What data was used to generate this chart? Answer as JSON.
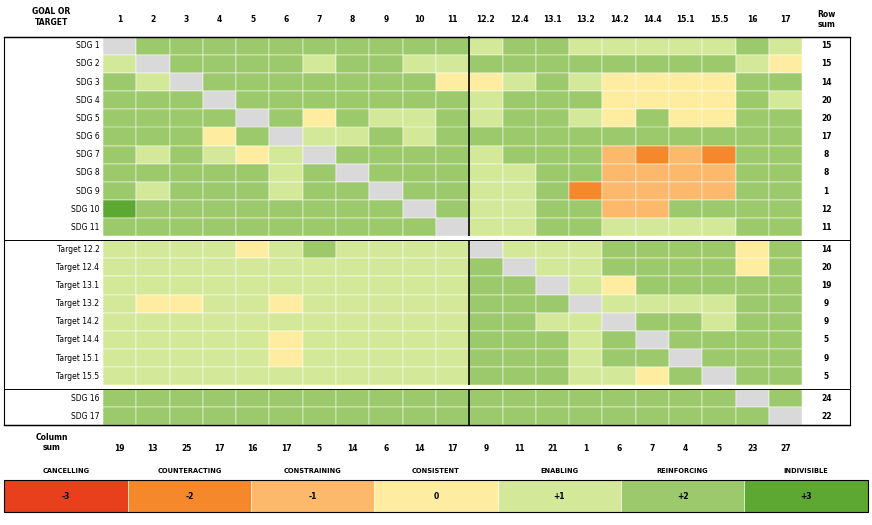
{
  "rows": [
    "SDG 1",
    "SDG 2",
    "SDG 3",
    "SDG 4",
    "SDG 5",
    "SDG 6",
    "SDG 7",
    "SDG 8",
    "SDG 9",
    "SDG 10",
    "SDG 11",
    "Target 12.2",
    "Target 12.4",
    "Target 13.1",
    "Target 13.2",
    "Target 14.2",
    "Target 14.4",
    "Target 15.1",
    "Target 15.5",
    "SDG 16",
    "SDG 17"
  ],
  "cols": [
    "1",
    "2",
    "3",
    "4",
    "5",
    "6",
    "7",
    "8",
    "9",
    "10",
    "11",
    "12.2",
    "12.4",
    "13.1",
    "13.2",
    "14.2",
    "14.4",
    "15.1",
    "15.5",
    "16",
    "17"
  ],
  "row_sums": [
    15,
    15,
    14,
    20,
    20,
    17,
    8,
    8,
    1,
    12,
    11,
    14,
    20,
    19,
    9,
    9,
    5,
    9,
    5,
    24,
    22
  ],
  "col_sums": [
    19,
    13,
    25,
    17,
    16,
    17,
    5,
    14,
    6,
    14,
    17,
    9,
    11,
    21,
    1,
    6,
    7,
    4,
    5,
    23,
    27
  ],
  "matrix": [
    [
      -9,
      2,
      2,
      2,
      2,
      2,
      2,
      2,
      2,
      2,
      2,
      1,
      2,
      2,
      1,
      1,
      1,
      1,
      1,
      2,
      1
    ],
    [
      1,
      -9,
      2,
      2,
      2,
      2,
      1,
      2,
      2,
      1,
      1,
      2,
      2,
      2,
      2,
      2,
      2,
      2,
      2,
      1,
      0
    ],
    [
      2,
      1,
      -9,
      2,
      2,
      2,
      2,
      2,
      2,
      2,
      0,
      0,
      1,
      2,
      1,
      0,
      0,
      0,
      0,
      2,
      2
    ],
    [
      2,
      2,
      2,
      -9,
      2,
      2,
      2,
      2,
      2,
      2,
      2,
      1,
      2,
      2,
      2,
      0,
      0,
      0,
      0,
      2,
      1
    ],
    [
      2,
      2,
      2,
      2,
      -9,
      2,
      0,
      2,
      1,
      1,
      2,
      1,
      2,
      2,
      1,
      0,
      2,
      0,
      0,
      2,
      2
    ],
    [
      2,
      2,
      2,
      0,
      2,
      -9,
      1,
      1,
      2,
      1,
      2,
      2,
      2,
      2,
      2,
      2,
      2,
      2,
      2,
      2,
      2
    ],
    [
      2,
      1,
      2,
      1,
      0,
      1,
      -9,
      2,
      2,
      2,
      2,
      1,
      2,
      2,
      2,
      -1,
      -2,
      -1,
      -2,
      2,
      2
    ],
    [
      2,
      2,
      2,
      2,
      2,
      1,
      2,
      -9,
      2,
      2,
      2,
      1,
      1,
      2,
      2,
      -1,
      -1,
      -1,
      -1,
      2,
      2
    ],
    [
      2,
      1,
      2,
      2,
      2,
      1,
      2,
      2,
      -9,
      2,
      2,
      1,
      1,
      2,
      -2,
      -1,
      -1,
      -1,
      -1,
      2,
      2
    ],
    [
      3,
      2,
      2,
      2,
      2,
      2,
      2,
      2,
      2,
      -9,
      2,
      1,
      1,
      2,
      2,
      -1,
      -1,
      2,
      2,
      2,
      2
    ],
    [
      2,
      2,
      2,
      2,
      2,
      2,
      2,
      2,
      2,
      2,
      -9,
      1,
      1,
      2,
      2,
      1,
      1,
      1,
      1,
      2,
      2
    ],
    [
      1,
      1,
      1,
      1,
      0,
      1,
      2,
      1,
      1,
      1,
      1,
      -9,
      1,
      1,
      1,
      2,
      2,
      2,
      2,
      0,
      2
    ],
    [
      1,
      1,
      1,
      1,
      1,
      1,
      1,
      1,
      1,
      1,
      1,
      2,
      -9,
      1,
      1,
      2,
      2,
      2,
      2,
      0,
      2
    ],
    [
      1,
      1,
      1,
      1,
      1,
      1,
      1,
      1,
      1,
      1,
      1,
      2,
      2,
      -9,
      1,
      0,
      2,
      2,
      2,
      2,
      2
    ],
    [
      1,
      0,
      0,
      1,
      1,
      0,
      1,
      1,
      1,
      1,
      1,
      2,
      2,
      2,
      -9,
      1,
      1,
      1,
      1,
      2,
      2
    ],
    [
      1,
      1,
      1,
      1,
      1,
      1,
      1,
      1,
      1,
      1,
      1,
      2,
      2,
      1,
      1,
      -9,
      2,
      2,
      1,
      2,
      2
    ],
    [
      1,
      1,
      1,
      1,
      1,
      0,
      1,
      1,
      1,
      1,
      1,
      2,
      2,
      2,
      1,
      2,
      -9,
      2,
      2,
      2,
      2
    ],
    [
      1,
      1,
      1,
      1,
      1,
      0,
      1,
      1,
      1,
      1,
      1,
      2,
      2,
      2,
      1,
      2,
      2,
      -9,
      2,
      2,
      2
    ],
    [
      1,
      1,
      1,
      1,
      1,
      1,
      1,
      1,
      1,
      1,
      1,
      2,
      2,
      2,
      1,
      1,
      0,
      2,
      -9,
      2,
      2
    ],
    [
      2,
      2,
      2,
      2,
      2,
      2,
      2,
      2,
      2,
      2,
      2,
      2,
      2,
      2,
      2,
      2,
      2,
      2,
      2,
      -9,
      2
    ],
    [
      2,
      2,
      2,
      2,
      2,
      2,
      2,
      2,
      2,
      2,
      2,
      2,
      2,
      2,
      2,
      2,
      2,
      2,
      2,
      2,
      -9
    ]
  ],
  "color_map": {
    "-3": "#e8401c",
    "-2": "#f5882a",
    "-1": "#fdb96b",
    "0": "#feeda0",
    "1": "#d4e89a",
    "2": "#9dc96d",
    "3": "#5da832",
    "-9": "#d9d9d9"
  },
  "legend_labels_top": [
    "CANCELLING",
    "COUNTERACTING",
    "CONSTRAINING",
    "CONSISTENT",
    "ENABLING",
    "REINFORCING",
    "INDIVISIBLE"
  ],
  "legend_values": [
    "-3",
    "-2",
    "-1",
    "0",
    "+1",
    "+2",
    "+3"
  ],
  "legend_colors": [
    "#e8401c",
    "#f5882a",
    "#fdb96b",
    "#feeda0",
    "#d4e89a",
    "#9dc96d",
    "#5da832"
  ],
  "background_color": "#ffffff"
}
